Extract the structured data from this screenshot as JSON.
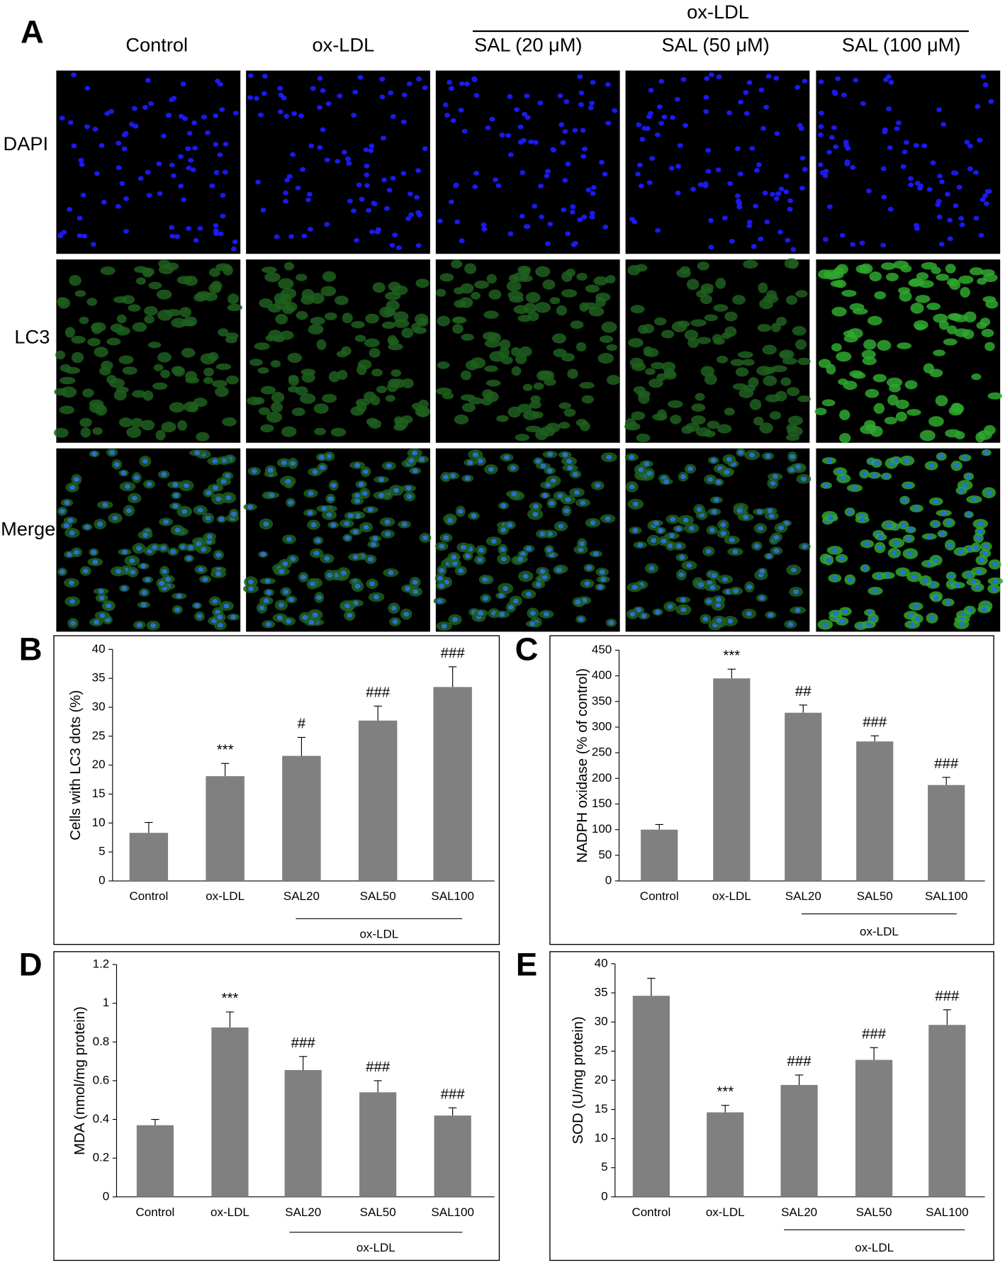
{
  "panel_a": {
    "letter": "A",
    "group_label": "ox-LDL",
    "columns": [
      "Control",
      "ox-LDL",
      "SAL (20 μM)",
      "SAL (50 μM)",
      "SAL (100 μM)"
    ],
    "rows": [
      "DAPI",
      "LC3",
      "Merge"
    ]
  },
  "chart_data": [
    {
      "type": "bar",
      "panel": "B",
      "ylabel": "Cells with LC3 dots (%)",
      "group_label": "ox-LDL",
      "color": "#808080",
      "categories": [
        "Control",
        "ox-LDL",
        "SAL20",
        "SAL50",
        "SAL100"
      ],
      "values": [
        8.3,
        18.1,
        21.6,
        27.7,
        33.5
      ],
      "errors": [
        1.8,
        2.2,
        3.2,
        2.5,
        3.5
      ],
      "annotations": [
        null,
        "***",
        "#",
        "###",
        "###"
      ],
      "ylim": [
        0,
        40
      ],
      "yticks": [
        0,
        5,
        10,
        15,
        20,
        25,
        30,
        35,
        40
      ]
    },
    {
      "type": "bar",
      "panel": "C",
      "ylabel": "NADPH  oxidase (% of control)",
      "group_label": "ox-LDL",
      "color": "#808080",
      "categories": [
        "Control",
        "ox-LDL",
        "SAL20",
        "SAL50",
        "SAL100"
      ],
      "values": [
        100,
        395,
        328,
        272,
        187
      ],
      "errors": [
        10,
        18,
        15,
        11,
        15
      ],
      "annotations": [
        null,
        "***",
        "##",
        "###",
        "###"
      ],
      "ylim": [
        0,
        450
      ],
      "yticks": [
        0,
        50,
        100,
        150,
        200,
        250,
        300,
        350,
        400,
        450
      ]
    },
    {
      "type": "bar",
      "panel": "D",
      "ylabel": "MDA (nmol/mg protein)",
      "group_label": "ox-LDL",
      "color": "#808080",
      "categories": [
        "Control",
        "ox-LDL",
        "SAL20",
        "SAL50",
        "SAL100"
      ],
      "values": [
        0.37,
        0.875,
        0.655,
        0.54,
        0.42
      ],
      "errors": [
        0.03,
        0.08,
        0.07,
        0.06,
        0.04
      ],
      "annotations": [
        null,
        "***",
        "###",
        "###",
        "###"
      ],
      "ylim": [
        0,
        1.2
      ],
      "yticks": [
        0,
        0.2,
        0.4,
        0.6,
        0.8,
        1,
        1.2
      ]
    },
    {
      "type": "bar",
      "panel": "E",
      "ylabel": "SOD (U/mg protein)",
      "group_label": "ox-LDL",
      "color": "#808080",
      "categories": [
        "Control",
        "ox-LDL",
        "SAL20",
        "SAL50",
        "SAL100"
      ],
      "values": [
        34.5,
        14.5,
        19.2,
        23.5,
        29.5
      ],
      "errors": [
        3,
        1.2,
        1.7,
        2.1,
        2.6
      ],
      "annotations": [
        null,
        "***",
        "###",
        "###",
        "###"
      ],
      "ylim": [
        0,
        40
      ],
      "yticks": [
        0,
        5,
        10,
        15,
        20,
        25,
        30,
        35,
        40
      ]
    }
  ]
}
